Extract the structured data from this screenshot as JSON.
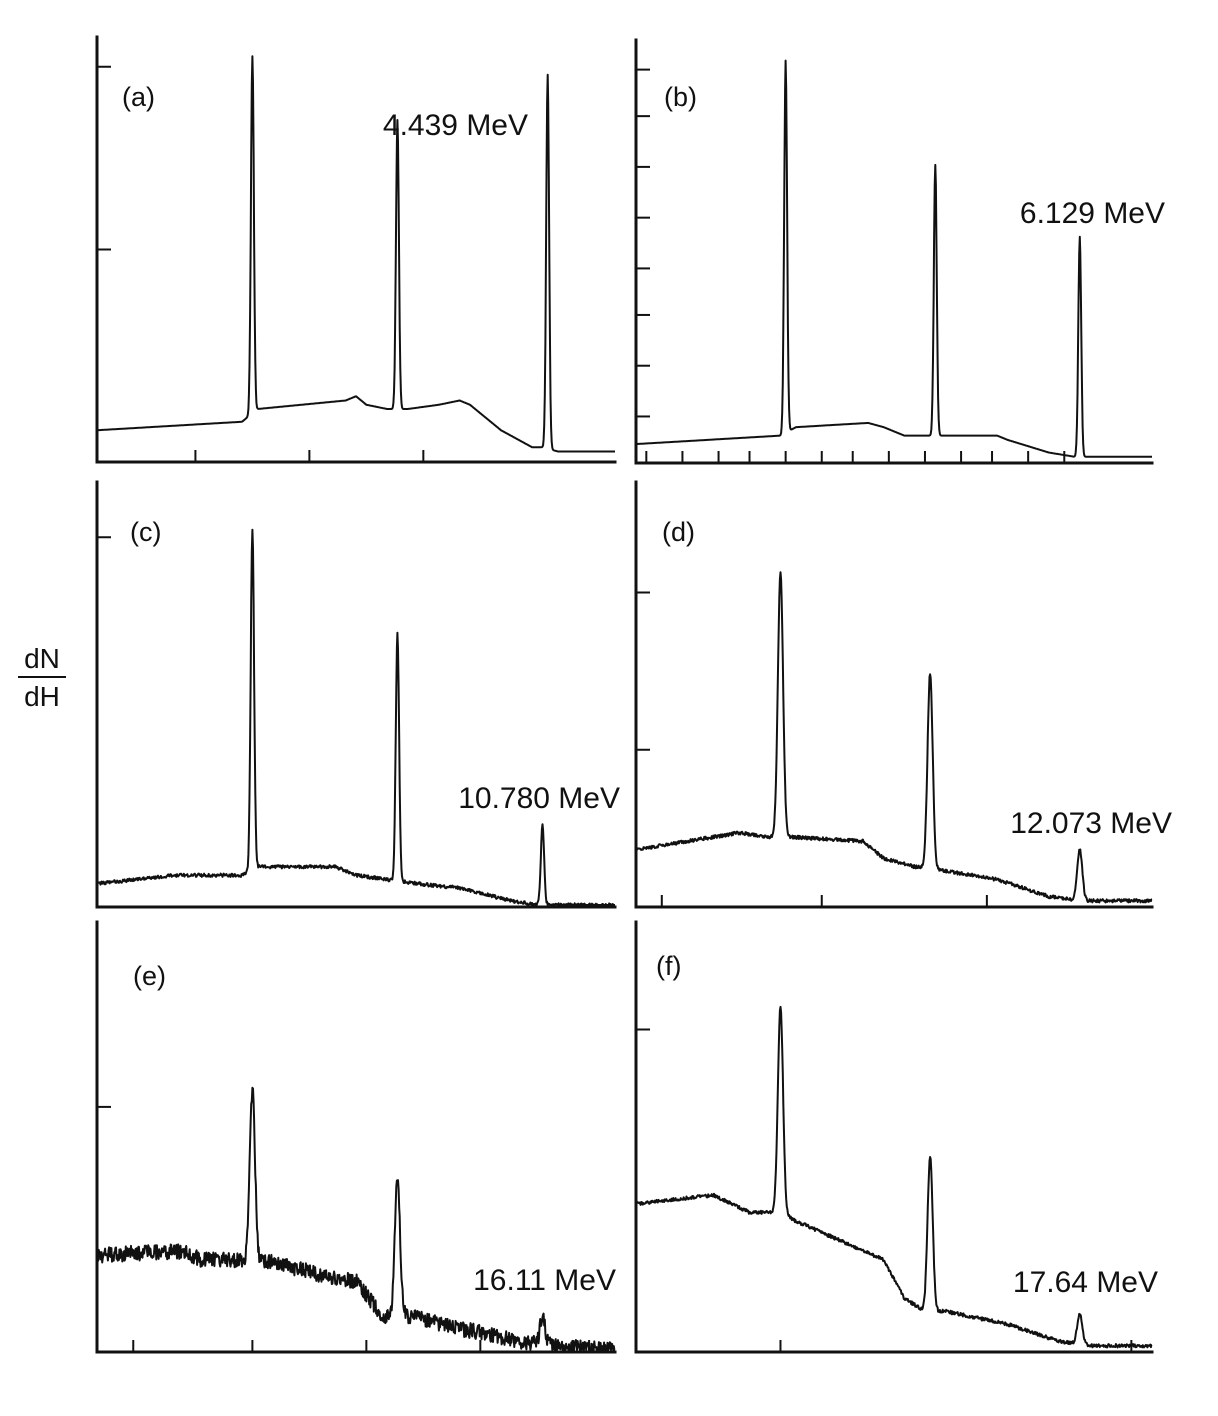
{
  "ylabel": {
    "numerator": "dN",
    "denominator": "dH"
  },
  "chart_data": [
    {
      "type": "line",
      "panel_label": "(a)",
      "energy_label": "4.439 MeV",
      "peaks": [
        {
          "x": 0.3,
          "height": 0.84
        },
        {
          "x": 0.58,
          "height": 0.68
        },
        {
          "x": 0.87,
          "height": 0.88
        }
      ],
      "continuum": [
        [
          0,
          0.07
        ],
        [
          0.28,
          0.09
        ],
        [
          0.31,
          0.12
        ],
        [
          0.48,
          0.14
        ],
        [
          0.5,
          0.15
        ],
        [
          0.52,
          0.13
        ],
        [
          0.56,
          0.12
        ],
        [
          0.6,
          0.12
        ],
        [
          0.66,
          0.13
        ],
        [
          0.7,
          0.14
        ],
        [
          0.72,
          0.13
        ],
        [
          0.78,
          0.07
        ],
        [
          0.84,
          0.03
        ],
        [
          0.86,
          0.03
        ],
        [
          0.89,
          0.02
        ],
        [
          1.0,
          0.02
        ]
      ],
      "noise": 0,
      "x_ticks": [
        0.19,
        0.41,
        0.63
      ],
      "y_ticks": [
        0.5,
        0.93
      ]
    },
    {
      "type": "line",
      "panel_label": "(b)",
      "energy_label": "6.129 MeV",
      "peaks": [
        {
          "x": 0.29,
          "height": 0.88
        },
        {
          "x": 0.58,
          "height": 0.64
        },
        {
          "x": 0.86,
          "height": 0.52
        }
      ],
      "continuum": [
        [
          0,
          0.04
        ],
        [
          0.28,
          0.06
        ],
        [
          0.31,
          0.08
        ],
        [
          0.45,
          0.09
        ],
        [
          0.48,
          0.08
        ],
        [
          0.52,
          0.06
        ],
        [
          0.56,
          0.06
        ],
        [
          0.6,
          0.06
        ],
        [
          0.7,
          0.06
        ],
        [
          0.72,
          0.05
        ],
        [
          0.8,
          0.02
        ],
        [
          0.85,
          0.01
        ],
        [
          0.88,
          0.01
        ],
        [
          1.0,
          0.01
        ]
      ],
      "noise": 0,
      "x_ticks": [
        0.02,
        0.09,
        0.16,
        0.22,
        0.29,
        0.36,
        0.42,
        0.49,
        0.56,
        0.63,
        0.69,
        0.76,
        0.83
      ],
      "y_ticks": [
        0.11,
        0.23,
        0.35,
        0.46,
        0.58,
        0.7,
        0.82,
        0.93
      ]
    },
    {
      "type": "line",
      "panel_label": "(c)",
      "energy_label": "10.780 MeV",
      "peaks": [
        {
          "x": 0.3,
          "height": 0.8
        },
        {
          "x": 0.58,
          "height": 0.58
        },
        {
          "x": 0.86,
          "height": 0.19
        }
      ],
      "continuum": [
        [
          0,
          0.05
        ],
        [
          0.15,
          0.07
        ],
        [
          0.28,
          0.07
        ],
        [
          0.31,
          0.09
        ],
        [
          0.46,
          0.09
        ],
        [
          0.5,
          0.07
        ],
        [
          0.56,
          0.06
        ],
        [
          0.62,
          0.05
        ],
        [
          0.7,
          0.04
        ],
        [
          0.8,
          0.01
        ],
        [
          0.85,
          0.0
        ],
        [
          1.0,
          0.0
        ]
      ],
      "noise": 0.004,
      "x_ticks": [],
      "y_ticks": [
        0.87
      ]
    },
    {
      "type": "line",
      "panel_label": "(d)",
      "energy_label": "12.073 MeV",
      "peaks": [
        {
          "x": 0.28,
          "height": 0.62
        },
        {
          "x": 0.57,
          "height": 0.46
        },
        {
          "x": 0.86,
          "height": 0.12
        }
      ],
      "continuum": [
        [
          0,
          0.13
        ],
        [
          0.2,
          0.17
        ],
        [
          0.26,
          0.16
        ],
        [
          0.3,
          0.16
        ],
        [
          0.44,
          0.15
        ],
        [
          0.48,
          0.11
        ],
        [
          0.54,
          0.09
        ],
        [
          0.6,
          0.08
        ],
        [
          0.7,
          0.06
        ],
        [
          0.8,
          0.02
        ],
        [
          0.86,
          0.01
        ],
        [
          1.0,
          0.01
        ]
      ],
      "noise": 0.004,
      "x_ticks": [
        0.05,
        0.36,
        0.68
      ],
      "y_ticks": [
        0.37,
        0.74
      ]
    },
    {
      "type": "line",
      "panel_label": "(e)",
      "energy_label": "16.11 MeV",
      "peaks": [
        {
          "x": 0.3,
          "height": 0.39
        },
        {
          "x": 0.58,
          "height": 0.32
        },
        {
          "x": 0.86,
          "height": 0.06
        }
      ],
      "continuum": [
        [
          0,
          0.22
        ],
        [
          0.16,
          0.23
        ],
        [
          0.2,
          0.21
        ],
        [
          0.28,
          0.21
        ],
        [
          0.32,
          0.21
        ],
        [
          0.45,
          0.17
        ],
        [
          0.5,
          0.16
        ],
        [
          0.55,
          0.08
        ],
        [
          0.6,
          0.08
        ],
        [
          0.7,
          0.05
        ],
        [
          0.82,
          0.02
        ],
        [
          0.88,
          0.01
        ],
        [
          1.0,
          0.0
        ]
      ],
      "noise": 0.018,
      "x_ticks": [
        0.07,
        0.3,
        0.52,
        0.74,
        0.95
      ],
      "y_ticks": [
        0.57
      ]
    },
    {
      "type": "line",
      "panel_label": "(f)",
      "energy_label": "17.64 MeV",
      "peaks": [
        {
          "x": 0.28,
          "height": 0.48
        },
        {
          "x": 0.57,
          "height": 0.36
        },
        {
          "x": 0.86,
          "height": 0.07
        }
      ],
      "continuum": [
        [
          0,
          0.34
        ],
        [
          0.15,
          0.36
        ],
        [
          0.22,
          0.32
        ],
        [
          0.28,
          0.32
        ],
        [
          0.31,
          0.3
        ],
        [
          0.48,
          0.21
        ],
        [
          0.52,
          0.12
        ],
        [
          0.56,
          0.09
        ],
        [
          0.6,
          0.09
        ],
        [
          0.72,
          0.06
        ],
        [
          0.82,
          0.02
        ],
        [
          0.88,
          0.01
        ],
        [
          1.0,
          0.01
        ]
      ],
      "noise": 0.004,
      "x_ticks": [
        0.28,
        0.96
      ],
      "y_ticks": [
        0.75
      ]
    }
  ]
}
